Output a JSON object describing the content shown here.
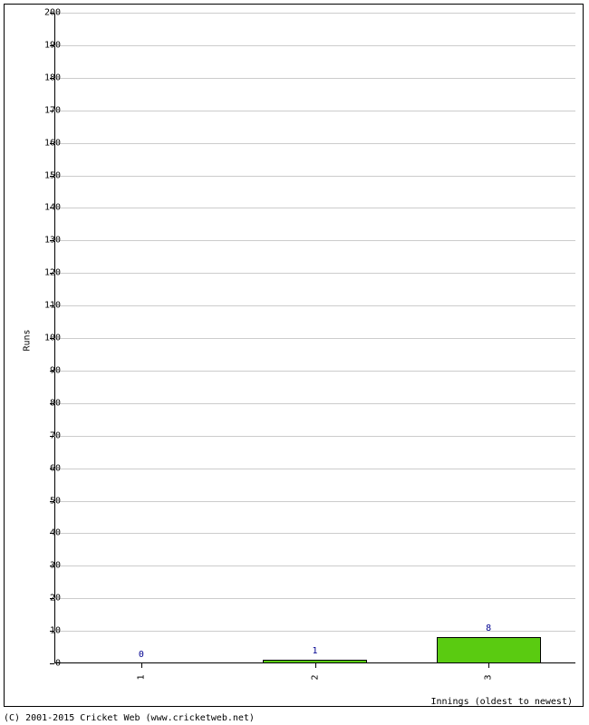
{
  "chart": {
    "type": "bar",
    "y_axis": {
      "title": "Runs",
      "min": 0,
      "max": 200,
      "tick_step": 10,
      "ticks": [
        0,
        10,
        20,
        30,
        40,
        50,
        60,
        70,
        80,
        90,
        100,
        110,
        120,
        130,
        140,
        150,
        160,
        170,
        180,
        190,
        200
      ]
    },
    "x_axis": {
      "title": "Innings (oldest to newest)",
      "categories": [
        "1",
        "2",
        "3"
      ]
    },
    "values": [
      0,
      1,
      8
    ],
    "bar_color": "#5acb11",
    "bar_border_color": "#000000",
    "value_label_color": "#000090",
    "grid_color": "#cccccc",
    "background_color": "#ffffff",
    "border_color": "#000000",
    "bar_width_ratio": 0.6,
    "label_fontsize": 10
  },
  "copyright": "(C) 2001-2015 Cricket Web (www.cricketweb.net)"
}
